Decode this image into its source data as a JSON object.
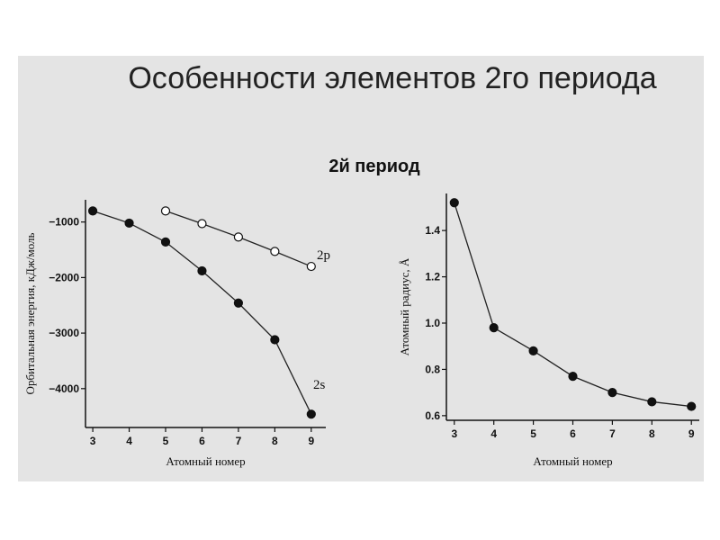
{
  "slide": {
    "title": "Особенности элементов 2го периода",
    "subtitle": "2й период"
  },
  "chart_data": [
    {
      "type": "line",
      "xlabel": "Атомный номер",
      "ylabel": "Орбитальная энергия, кДж/моль",
      "xlim": [
        2.8,
        9.4
      ],
      "ylim": [
        -4700,
        -600
      ],
      "x_ticks": [
        3,
        4,
        5,
        6,
        7,
        8,
        9
      ],
      "y_ticks": [
        -1000,
        -2000,
        -3000,
        -4000
      ],
      "grid": false,
      "series": [
        {
          "name": "2s",
          "marker": "filled",
          "x": [
            3,
            4,
            5,
            6,
            7,
            8,
            9
          ],
          "y": [
            -800,
            -1020,
            -1360,
            -1880,
            -2460,
            -3120,
            -4460
          ]
        },
        {
          "name": "2p",
          "marker": "open",
          "x": [
            5,
            6,
            7,
            8,
            9
          ],
          "y": [
            -800,
            -1030,
            -1270,
            -1530,
            -1800
          ]
        }
      ]
    },
    {
      "type": "line",
      "xlabel": "Атомный номер",
      "ylabel": "Атомный радиус, Å",
      "xlim": [
        2.8,
        9.2
      ],
      "ylim": [
        0.58,
        1.56
      ],
      "x_ticks": [
        3,
        4,
        5,
        6,
        7,
        8,
        9
      ],
      "y_ticks": [
        0.6,
        0.8,
        1.0,
        1.2,
        1.4
      ],
      "grid": false,
      "series": [
        {
          "marker": "filled",
          "x": [
            3,
            4,
            5,
            6,
            7,
            8,
            9
          ],
          "y": [
            1.52,
            0.98,
            0.88,
            0.77,
            0.7,
            0.66,
            0.64
          ]
        }
      ]
    }
  ]
}
